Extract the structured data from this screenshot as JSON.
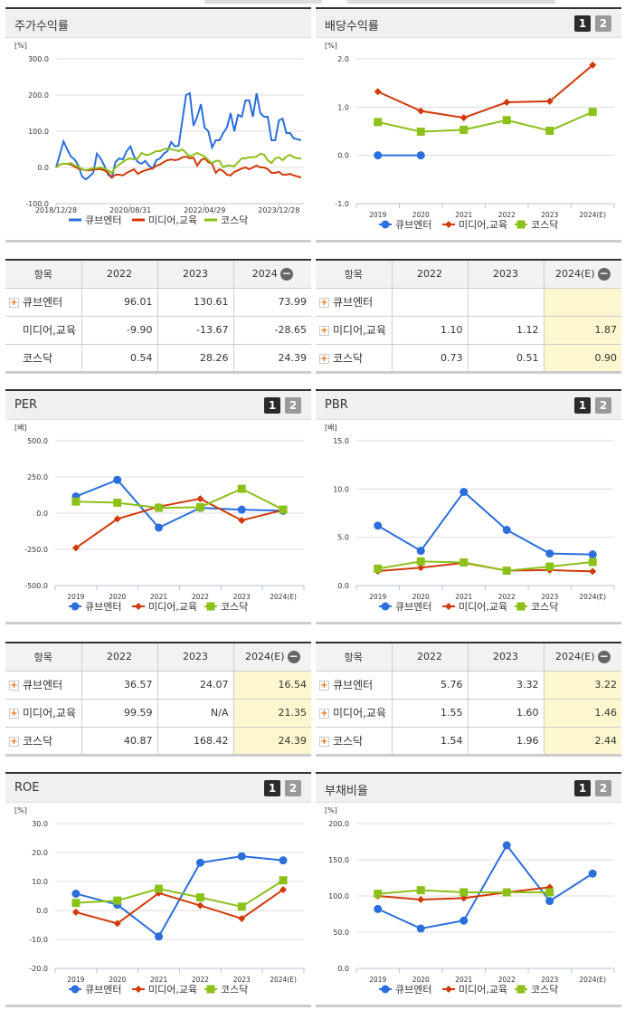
{
  "colors": {
    "series": [
      "#2a6fdb",
      "#d13a0a",
      "#8cc11a"
    ],
    "highlight": "#fdf7cf"
  },
  "pager": [
    "1",
    "2"
  ],
  "chart_data": [
    {
      "type": "line",
      "title": "주가수익률",
      "unit": "[%]",
      "ylim": [
        -100,
        300
      ],
      "y_ticks": [
        "300.0",
        "200.0",
        "100.0",
        "0.0",
        "-100.0"
      ],
      "y_tick_values": [
        300,
        200,
        100,
        0,
        -100
      ],
      "x": [
        "2018/12",
        "2019/01",
        "2019/02",
        "2019/03",
        "2019/04",
        "2019/05",
        "2019/06",
        "2019/07",
        "2019/08",
        "2019/09",
        "2019/10",
        "2019/11",
        "2019/12",
        "2020/01",
        "2020/02",
        "2020/03",
        "2020/04",
        "2020/05",
        "2020/06",
        "2020/07",
        "2020/08",
        "2020/09",
        "2020/10",
        "2020/11",
        "2020/12",
        "2021/01",
        "2021/02",
        "2021/03",
        "2021/04",
        "2021/05",
        "2021/06",
        "2021/07",
        "2021/08",
        "2021/09",
        "2021/10",
        "2021/11",
        "2021/12",
        "2022/01",
        "2022/02",
        "2022/03",
        "2022/04",
        "2022/05",
        "2022/06",
        "2022/07",
        "2022/08",
        "2022/09",
        "2022/10",
        "2022/11",
        "2022/12",
        "2023/01",
        "2023/02",
        "2023/03",
        "2023/04",
        "2023/05",
        "2023/06",
        "2023/07",
        "2023/08",
        "2023/09",
        "2023/10",
        "2023/11",
        "2023/12",
        "2024/01",
        "2024/02",
        "2024/03",
        "2024/04",
        "2024/05",
        "2024/06"
      ],
      "x_ticks": [
        "2018/12/28",
        "2020/08/31",
        "2022/04/29",
        "2023/12/28"
      ],
      "x_tick_index": [
        0,
        20,
        40,
        60
      ],
      "markers": false,
      "grid": true,
      "legend": "bottom",
      "series": [
        {
          "name": "큐브엔터",
          "values": [
            0,
            35,
            72,
            50,
            30,
            22,
            5,
            -25,
            -33,
            -25,
            -15,
            38,
            25,
            5,
            -20,
            -28,
            15,
            25,
            22,
            45,
            58,
            30,
            15,
            10,
            18,
            5,
            -3,
            20,
            25,
            38,
            45,
            70,
            58,
            60,
            130,
            200,
            205,
            115,
            140,
            175,
            110,
            100,
            55,
            75,
            75,
            95,
            110,
            150,
            100,
            145,
            140,
            185,
            185,
            140,
            205,
            150,
            140,
            140,
            75,
            75,
            130,
            135,
            95,
            95,
            80,
            78,
            75
          ]
        },
        {
          "name": "미디어,교육",
          "values": [
            0,
            8,
            10,
            10,
            8,
            2,
            -3,
            -5,
            -8,
            -8,
            -6,
            -5,
            -5,
            -8,
            -15,
            -28,
            -20,
            -20,
            -22,
            -15,
            -10,
            -5,
            -18,
            -12,
            -8,
            -5,
            -3,
            5,
            8,
            15,
            20,
            22,
            20,
            22,
            28,
            30,
            25,
            27,
            5,
            20,
            25,
            15,
            10,
            -15,
            -5,
            -10,
            -20,
            -22,
            -12,
            -8,
            -3,
            0,
            -5,
            0,
            5,
            0,
            0,
            -5,
            -15,
            -15,
            -12,
            -20,
            -20,
            -18,
            -22,
            -25,
            -28
          ]
        },
        {
          "name": "코스닥",
          "values": [
            0,
            8,
            10,
            10,
            12,
            5,
            2,
            -5,
            -8,
            -5,
            -2,
            -2,
            0,
            -3,
            -8,
            -15,
            0,
            8,
            15,
            22,
            25,
            22,
            25,
            40,
            35,
            35,
            40,
            45,
            45,
            50,
            52,
            50,
            48,
            45,
            50,
            40,
            30,
            35,
            40,
            35,
            30,
            20,
            12,
            18,
            18,
            0,
            5,
            5,
            3,
            15,
            25,
            25,
            28,
            28,
            30,
            38,
            35,
            20,
            12,
            25,
            28,
            20,
            30,
            35,
            28,
            25,
            25
          ]
        }
      ]
    },
    {
      "type": "line",
      "title": "배당수익률",
      "unit": "[%]",
      "ylim": [
        -1,
        2
      ],
      "y_ticks": [
        "2.0",
        "1.0",
        "0.0",
        "-1.0"
      ],
      "y_tick_values": [
        2,
        1,
        0,
        -1
      ],
      "categories": [
        "2019",
        "2020",
        "2021",
        "2022",
        "2023",
        "2024(E)"
      ],
      "markers": true,
      "grid": true,
      "legend": "bottom",
      "series": [
        {
          "name": "큐브엔터",
          "values": [
            0,
            0,
            null,
            null,
            null,
            null
          ]
        },
        {
          "name": "미디어,교육",
          "values": [
            1.32,
            0.92,
            0.78,
            1.1,
            1.12,
            1.87
          ]
        },
        {
          "name": "코스닥",
          "values": [
            0.69,
            0.49,
            0.53,
            0.73,
            0.51,
            0.9
          ]
        }
      ]
    },
    {
      "type": "line",
      "title": "PER",
      "unit": "[배]",
      "ylim": [
        -500,
        500
      ],
      "y_ticks": [
        "500.0",
        "250.0",
        "0.0",
        "-250.0",
        "-500.0"
      ],
      "y_tick_values": [
        500,
        250,
        0,
        -250,
        -500
      ],
      "categories": [
        "2019",
        "2020",
        "2021",
        "2022",
        "2023",
        "2024(E)"
      ],
      "markers": true,
      "grid": true,
      "legend": "bottom",
      "series": [
        {
          "name": "큐브엔터",
          "values": [
            115,
            230,
            -100,
            36.57,
            24.07,
            16.54
          ]
        },
        {
          "name": "미디어,교육",
          "values": [
            -240,
            -40,
            45,
            99.59,
            -50,
            21.35
          ]
        },
        {
          "name": "코스닥",
          "values": [
            80,
            72,
            37,
            40.87,
            168.42,
            24.39
          ]
        }
      ]
    },
    {
      "type": "line",
      "title": "PBR",
      "unit": "[배]",
      "ylim": [
        0,
        15
      ],
      "y_ticks": [
        "15.0",
        "10.0",
        "5.0",
        "0.0"
      ],
      "y_tick_values": [
        15,
        10,
        5,
        0
      ],
      "categories": [
        "2019",
        "2020",
        "2021",
        "2022",
        "2023",
        "2024(E)"
      ],
      "markers": true,
      "grid": true,
      "legend": "bottom",
      "series": [
        {
          "name": "큐브엔터",
          "values": [
            6.2,
            3.6,
            9.7,
            5.76,
            3.32,
            3.22
          ]
        },
        {
          "name": "미디어,교육",
          "values": [
            1.5,
            1.85,
            2.35,
            1.55,
            1.6,
            1.46
          ]
        },
        {
          "name": "코스닥",
          "values": [
            1.75,
            2.5,
            2.4,
            1.54,
            1.96,
            2.44
          ]
        }
      ]
    },
    {
      "type": "line",
      "title": "ROE",
      "unit": "[%]",
      "ylim": [
        -20,
        30
      ],
      "y_ticks": [
        "30.0",
        "20.0",
        "10.0",
        "0.0",
        "-10.0",
        "-20.0"
      ],
      "y_tick_values": [
        30,
        20,
        10,
        0,
        -10,
        -20
      ],
      "categories": [
        "2019",
        "2020",
        "2021",
        "2022",
        "2023",
        "2024(E)"
      ],
      "markers": true,
      "grid": true,
      "legend": "bottom",
      "series": [
        {
          "name": "큐브엔터",
          "values": [
            5.8,
            2.0,
            -9.0,
            16.5,
            18.7,
            17.3
          ]
        },
        {
          "name": "미디어,교육",
          "values": [
            -0.6,
            -4.5,
            6.0,
            1.7,
            -2.8,
            7.2
          ]
        },
        {
          "name": "코스닥",
          "values": [
            2.6,
            3.4,
            7.5,
            4.5,
            1.3,
            10.4
          ]
        }
      ]
    },
    {
      "type": "line",
      "title": "부채비율",
      "unit": "[%]",
      "ylim": [
        0,
        200
      ],
      "y_ticks": [
        "200.0",
        "150.0",
        "100.0",
        "50.0",
        "0.0"
      ],
      "y_tick_values": [
        200,
        150,
        100,
        50,
        0
      ],
      "categories": [
        "2019",
        "2020",
        "2021",
        "2022",
        "2023",
        "2024(E)"
      ],
      "markers": true,
      "grid": true,
      "legend": "bottom",
      "series": [
        {
          "name": "큐브엔터",
          "values": [
            82,
            55,
            66,
            170,
            93,
            131
          ]
        },
        {
          "name": "미디어,교육",
          "values": [
            100,
            95,
            97,
            105,
            112,
            null
          ]
        },
        {
          "name": "코스닥",
          "values": [
            103,
            108,
            105,
            105,
            105,
            null
          ]
        }
      ]
    }
  ],
  "tables": [
    {
      "headers": [
        "항목",
        "2022",
        "2023",
        "2024"
      ],
      "collapse": "−",
      "highlight_last": false,
      "rows": [
        {
          "label": "큐브엔터",
          "expand": true,
          "cells": [
            "96.01",
            "130.61",
            "73.99"
          ]
        },
        {
          "label": "미디어,교육",
          "expand": false,
          "cells": [
            "-9.90",
            "-13.67",
            "-28.65"
          ]
        },
        {
          "label": "코스닥",
          "expand": false,
          "cells": [
            "0.54",
            "28.26",
            "24.39"
          ]
        }
      ]
    },
    {
      "headers": [
        "항목",
        "2022",
        "2023",
        "2024(E)"
      ],
      "collapse": "−",
      "highlight_last": true,
      "rows": [
        {
          "label": "큐브엔터",
          "expand": true,
          "cells": [
            "",
            "",
            ""
          ]
        },
        {
          "label": "미디어,교육",
          "expand": true,
          "cells": [
            "1.10",
            "1.12",
            "1.87"
          ]
        },
        {
          "label": "코스닥",
          "expand": true,
          "cells": [
            "0.73",
            "0.51",
            "0.90"
          ]
        }
      ]
    },
    {
      "headers": [
        "항목",
        "2022",
        "2023",
        "2024(E)"
      ],
      "collapse": "−",
      "highlight_last": true,
      "rows": [
        {
          "label": "큐브엔터",
          "expand": true,
          "cells": [
            "36.57",
            "24.07",
            "16.54"
          ]
        },
        {
          "label": "미디어,교육",
          "expand": true,
          "cells": [
            "99.59",
            "N/A",
            "21.35"
          ]
        },
        {
          "label": "코스닥",
          "expand": true,
          "cells": [
            "40.87",
            "168.42",
            "24.39"
          ]
        }
      ]
    },
    {
      "headers": [
        "항목",
        "2022",
        "2023",
        "2024(E)"
      ],
      "collapse": "−",
      "highlight_last": true,
      "rows": [
        {
          "label": "큐브엔터",
          "expand": true,
          "cells": [
            "5.76",
            "3.32",
            "3.22"
          ]
        },
        {
          "label": "미디어,교육",
          "expand": true,
          "cells": [
            "1.55",
            "1.60",
            "1.46"
          ]
        },
        {
          "label": "코스닥",
          "expand": true,
          "cells": [
            "1.54",
            "1.96",
            "2.44"
          ]
        }
      ]
    }
  ]
}
